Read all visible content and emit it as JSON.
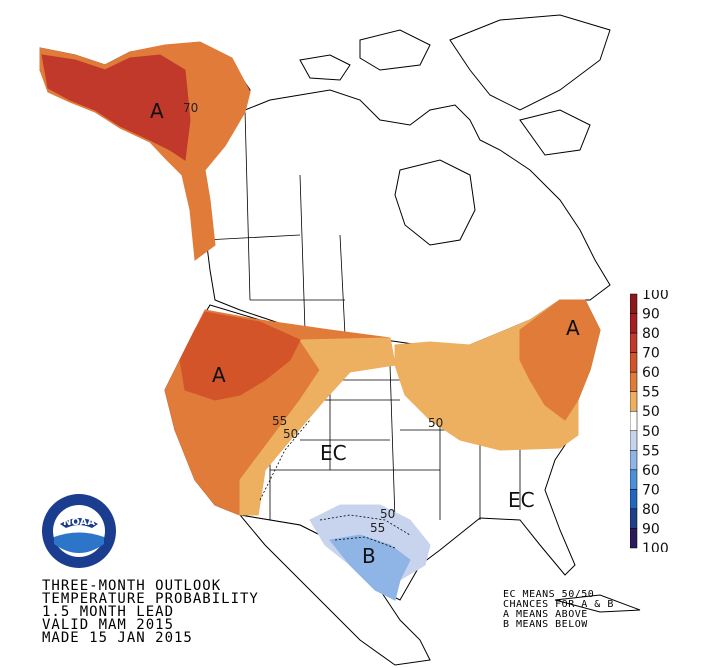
{
  "title_lines": [
    "THREE-MONTH OUTLOOK",
    "TEMPERATURE PROBABILITY",
    "1.5 MONTH LEAD",
    "VALID MAM 2015",
    "MADE 15 JAN 2015"
  ],
  "legend_notes": [
    "EC MEANS 50/50",
    "CHANCES FOR A & B",
    "A MEANS ABOVE",
    "B MEANS BELOW"
  ],
  "colorbar": {
    "labels": [
      "100",
      "90",
      "80",
      "70",
      "60",
      "55",
      "50",
      "50",
      "55",
      "60",
      "70",
      "80",
      "90",
      "100"
    ],
    "colors": [
      "#8b1a1a",
      "#a51e22",
      "#c0392b",
      "#d4542a",
      "#e07b39",
      "#edb060",
      "#ffffff",
      "#ffffff",
      "#c8d4ee",
      "#8fb4e6",
      "#4f8fd8",
      "#2266c0",
      "#1e3f8a",
      "#2a1a5e"
    ]
  },
  "regions": {
    "alaska_label": "A",
    "alaska_contour": "70",
    "west_label": "A",
    "northeast_label": "A",
    "central_ec": "EC",
    "southeast_ec": "EC",
    "texas_label": "B",
    "contours": [
      "55",
      "50",
      "50",
      "50",
      "55"
    ]
  },
  "logo": {
    "text": "NOAA",
    "colors": {
      "ring": "#1b3d8f",
      "inner": "#ffffff",
      "wave": "#2d75c9"
    }
  }
}
